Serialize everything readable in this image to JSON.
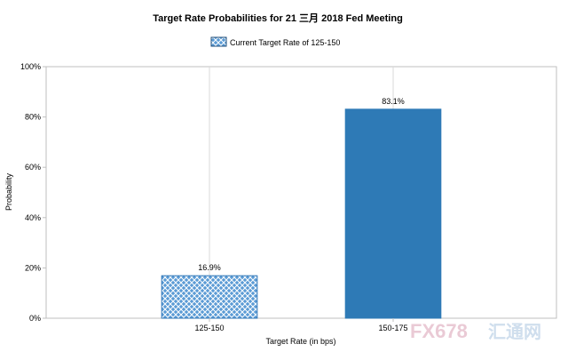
{
  "chart_data": {
    "type": "bar",
    "title": "Target Rate Probabilities for 21 三月 2018  Fed Meeting",
    "xlabel": "Target Rate (in bps)",
    "ylabel": "Probability",
    "categories": [
      "125-150",
      "150-175"
    ],
    "values": [
      16.9,
      83.1
    ],
    "data_labels": [
      "16.9%",
      "83.1%"
    ],
    "ylim": [
      0,
      100
    ],
    "yticks": [
      "0%",
      "20%",
      "40%",
      "60%",
      "80%",
      "100%"
    ],
    "legend": {
      "label": "Current Target Rate of 125-150",
      "placement": "top-center"
    },
    "grid": "vertical",
    "colors": {
      "current": "#5b9bd5",
      "other": "#2e7ab6",
      "hatch_line": "#ffffff"
    },
    "current_category": "125-150"
  },
  "watermark": {
    "brand": "FX678",
    "cn": "汇通网"
  }
}
